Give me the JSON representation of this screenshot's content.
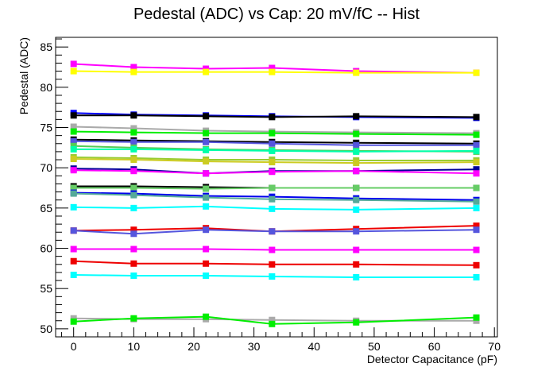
{
  "chart_data": {
    "type": "line",
    "title": "Pedestal (ADC) vs Cap: 20 mV/fC -- Hist",
    "xlabel": "Detector Capacitance (pF)",
    "ylabel": "Pedestal (ADC)",
    "xlim": [
      -3,
      70.5
    ],
    "ylim": [
      49,
      86.2
    ],
    "xticks": [
      0,
      10,
      20,
      30,
      40,
      50,
      60,
      70
    ],
    "yticks": [
      50,
      55,
      60,
      65,
      70,
      75,
      80,
      85
    ],
    "x": [
      0,
      10,
      22,
      33,
      47,
      67
    ],
    "grid": false,
    "legend": "none",
    "series": [
      {
        "color": "#ff00ff",
        "values": [
          82.9,
          82.5,
          82.3,
          82.4,
          82.0,
          81.8
        ]
      },
      {
        "color": "#ffff00",
        "values": [
          82.0,
          81.9,
          81.9,
          81.9,
          81.8,
          81.8
        ]
      },
      {
        "color": "#0000ff",
        "values": [
          76.8,
          76.6,
          76.5,
          76.4,
          76.3,
          76.2
        ]
      },
      {
        "color": "#000000",
        "values": [
          76.5,
          76.5,
          76.4,
          76.3,
          76.4,
          76.3
        ]
      },
      {
        "color": "#aaaaaa",
        "values": [
          75.1,
          74.9,
          74.6,
          74.5,
          74.4,
          74.3
        ]
      },
      {
        "color": "#00ee00",
        "values": [
          74.5,
          74.4,
          74.3,
          74.3,
          74.2,
          74.1
        ]
      },
      {
        "color": "#000000",
        "values": [
          73.5,
          73.4,
          73.3,
          73.2,
          73.1,
          73.0
        ]
      },
      {
        "color": "#5555dd",
        "values": [
          73.3,
          73.2,
          73.2,
          73.0,
          72.8,
          72.8
        ]
      },
      {
        "color": "#55cc55",
        "values": [
          72.7,
          72.5,
          72.3,
          72.2,
          72.1,
          72.0
        ]
      },
      {
        "color": "#00ffaa",
        "values": [
          72.3,
          72.3,
          72.2,
          72.1,
          72.0,
          72.1
        ]
      },
      {
        "color": "#99cc33",
        "values": [
          71.3,
          71.2,
          71.0,
          71.0,
          70.9,
          70.9
        ]
      },
      {
        "color": "#cccc22",
        "values": [
          71.1,
          71.0,
          70.8,
          70.7,
          70.6,
          70.7
        ]
      },
      {
        "color": "#000099",
        "values": [
          69.9,
          69.8,
          69.3,
          69.6,
          69.6,
          69.8
        ]
      },
      {
        "color": "#ff00ff",
        "values": [
          69.7,
          69.6,
          69.3,
          69.5,
          69.6,
          69.3
        ]
      },
      {
        "color": "#000000",
        "values": [
          67.7,
          67.7,
          67.6,
          67.5,
          67.5,
          67.5
        ]
      },
      {
        "color": "#66cc66",
        "values": [
          67.5,
          67.5,
          67.4,
          67.5,
          67.5,
          67.5
        ]
      },
      {
        "color": "#0000ee",
        "values": [
          66.9,
          66.8,
          66.5,
          66.4,
          66.2,
          66.0
        ]
      },
      {
        "color": "#55aa99",
        "values": [
          66.8,
          66.6,
          66.3,
          66.1,
          66.0,
          65.8
        ]
      },
      {
        "color": "#00ffff",
        "values": [
          65.1,
          65.0,
          65.2,
          64.9,
          64.8,
          65.0
        ]
      },
      {
        "color": "#ee0000",
        "values": [
          62.2,
          62.3,
          62.5,
          62.1,
          62.4,
          62.8
        ]
      },
      {
        "color": "#5555dd",
        "values": [
          62.2,
          61.8,
          62.3,
          62.1,
          62.1,
          62.3
        ]
      },
      {
        "color": "#ff00ff",
        "values": [
          59.9,
          59.9,
          59.9,
          59.8,
          59.8,
          59.8
        ]
      },
      {
        "color": "#ee0000",
        "values": [
          58.4,
          58.1,
          58.1,
          58.0,
          58.0,
          57.9
        ]
      },
      {
        "color": "#00ffff",
        "values": [
          56.7,
          56.6,
          56.6,
          56.5,
          56.4,
          56.4
        ]
      },
      {
        "color": "#aaaaaa",
        "values": [
          51.3,
          51.2,
          51.2,
          51.1,
          51.0,
          51.0
        ]
      },
      {
        "color": "#00ee00",
        "values": [
          50.9,
          51.3,
          51.5,
          50.6,
          50.8,
          51.4
        ]
      }
    ]
  }
}
